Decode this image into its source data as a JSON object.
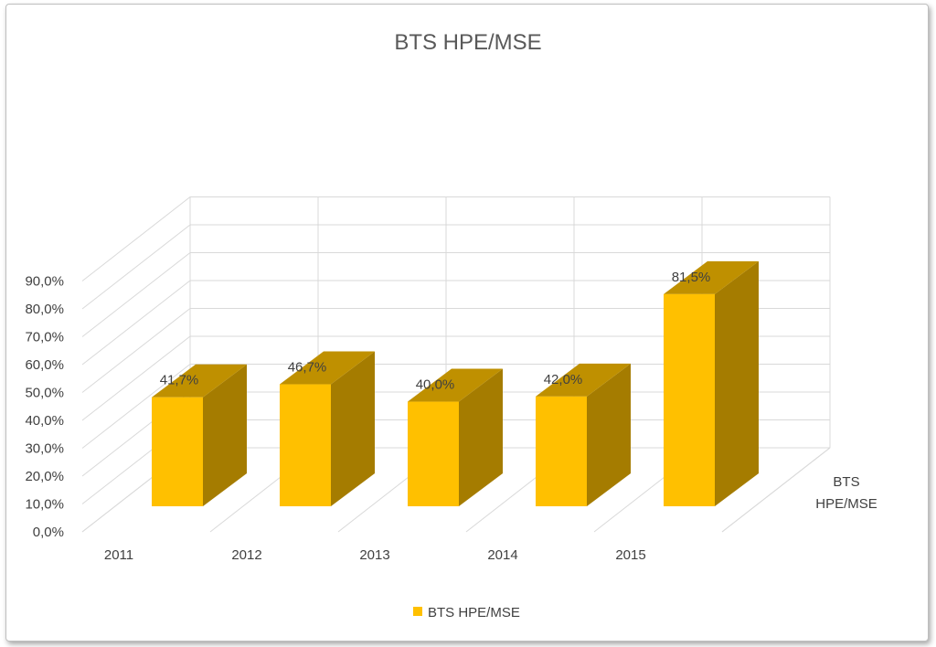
{
  "chart_data": {
    "type": "bar",
    "title": "BTS HPE/MSE",
    "categories": [
      "2011",
      "2012",
      "2013",
      "2014",
      "2015"
    ],
    "series": [
      {
        "name": "BTS HPE/MSE",
        "values": [
          41.7,
          46.7,
          40.0,
          42.0,
          81.5
        ],
        "labels": [
          "41,7%",
          "46,7%",
          "40,0%",
          "42,0%",
          "81,5%"
        ]
      }
    ],
    "y_ticks": [
      "0,0%",
      "10,0%",
      "20,0%",
      "30,0%",
      "40,0%",
      "50,0%",
      "60,0%",
      "70,0%",
      "80,0%",
      "90,0%"
    ],
    "ylim": [
      0,
      90
    ],
    "depth_axis_label_lines": [
      "BTS",
      "HPE/MSE"
    ],
    "legend": {
      "label": "BTS HPE/MSE",
      "position": "bottom"
    },
    "grid": true,
    "three_d": true,
    "colors": {
      "front": "#FFC000",
      "side": "#A57C00",
      "top": "#BF9000",
      "grid": "#d9d9d9"
    }
  }
}
